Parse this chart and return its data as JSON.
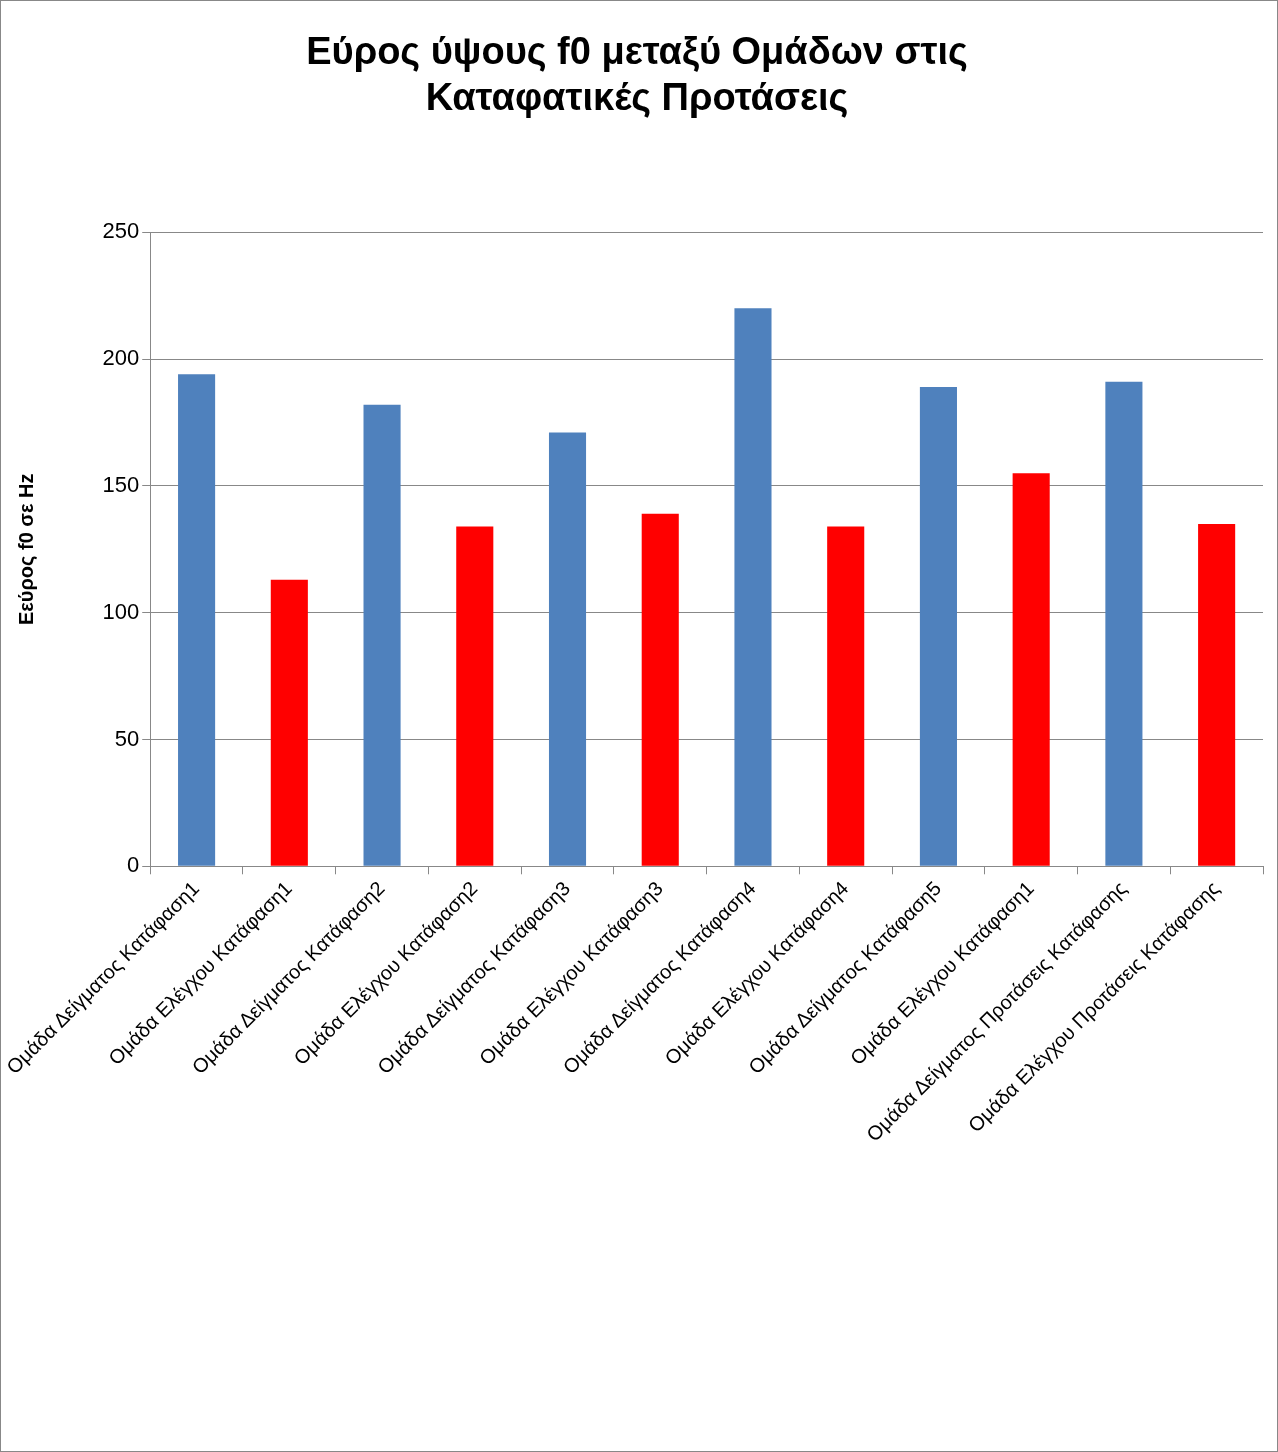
{
  "chart_data": {
    "type": "bar",
    "title": "Εύρος ύψους f0 μεταξύ Ομάδων στις Καταφατικές Προτάσεις",
    "ylabel": "Εεύρος f0 σε Hz",
    "categories": [
      "Ομάδα Δείγματος Κατάφαση1",
      "Ομάδα Ελέγχου Κατάφαση1",
      "Ομάδα Δείγματος Κατάφαση2",
      "Ομάδα Ελέγχου Κατάφαση2",
      "Ομάδα Δείγματος Κατάφαση3",
      "Ομάδα Ελέγχου Κατάφαση3",
      "Ομάδα Δείγματος Κατάφαση4",
      "Ομάδα Ελέγχου Κατάφαση4",
      "Ομάδα Δείγματος Κατάφαση5",
      "Ομάδα Ελέγχου Κατάφαση1",
      "Ομάδα Δείγματος Προτάσεις Κατάφασης",
      "Ομάδα Ελέγχου Προτάσεις Κατάφασης"
    ],
    "values": [
      194,
      113,
      182,
      134,
      171,
      139,
      220,
      134,
      189,
      155,
      191,
      135
    ],
    "colors": [
      "#4f81bd",
      "#ff0000",
      "#4f81bd",
      "#ff0000",
      "#4f81bd",
      "#ff0000",
      "#4f81bd",
      "#ff0000",
      "#4f81bd",
      "#ff0000",
      "#4f81bd",
      "#ff0000"
    ],
    "ylim": [
      0,
      250
    ],
    "yticks": [
      0,
      50,
      100,
      150,
      200,
      250
    ],
    "grid": "y"
  }
}
